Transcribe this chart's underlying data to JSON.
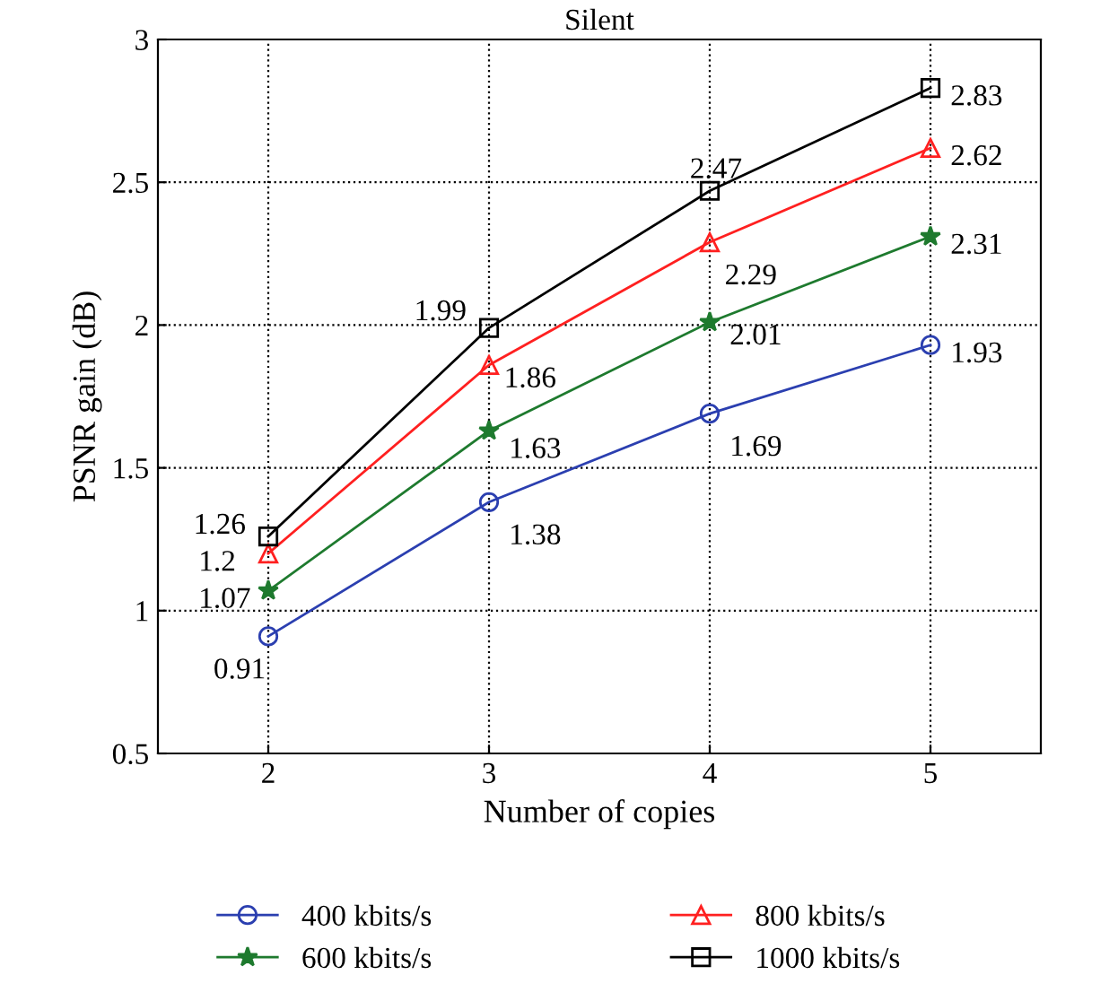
{
  "chart_data": {
    "type": "line",
    "title": "Silent",
    "xlabel": "Number of copies",
    "ylabel": "PSNR gain (dB)",
    "x": [
      2,
      3,
      4,
      5
    ],
    "xlim": [
      1.5,
      5.5
    ],
    "xticks": [
      2,
      3,
      4,
      5
    ],
    "ylim": [
      0.5,
      3
    ],
    "yticks": [
      0.5,
      1,
      1.5,
      2,
      2.5,
      3
    ],
    "grid": true,
    "legend": "bottom",
    "data_labels": true,
    "line_style": "solid",
    "series": [
      {
        "name": "400 kbits/s",
        "color": "#2b3fb0",
        "marker": "circle",
        "values": [
          0.91,
          1.38,
          1.69,
          1.93
        ]
      },
      {
        "name": "600 kbits/s",
        "color": "#1e7a2e",
        "marker": "star",
        "values": [
          1.07,
          1.63,
          2.01,
          2.31
        ]
      },
      {
        "name": "800 kbits/s",
        "color": "#ff2020",
        "marker": "triangle",
        "values": [
          1.2,
          1.86,
          2.29,
          2.62
        ]
      },
      {
        "name": "1000 kbits/s",
        "color": "#000000",
        "marker": "square",
        "values": [
          1.26,
          1.99,
          2.47,
          2.83
        ]
      }
    ]
  }
}
